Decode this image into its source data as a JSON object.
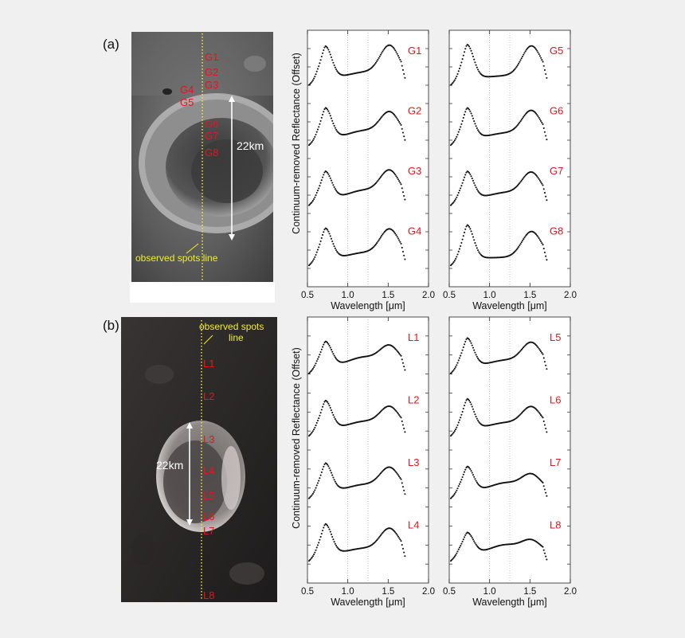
{
  "figure": {
    "panel_a_label": "(a)",
    "panel_b_label": "(b)",
    "scale_label_a": "22km",
    "scale_label_b": "22km",
    "observed_a": "observed spots line",
    "observed_b_line1": "observed spots",
    "observed_b_line2": "line",
    "ylabel": "Continuum-removed Reflectance (Offset)",
    "xlabel": "Wavelength [μm]",
    "label_color": "#e8141c",
    "dots_color": "#f2ef2a",
    "site_labels_a": [
      "G1",
      "G2",
      "G3",
      "G4",
      "G5",
      "G6",
      "G7",
      "G8"
    ],
    "site_labels_b": [
      "L1",
      "L2",
      "L3",
      "L4",
      "L5",
      "L6",
      "L7",
      "L8"
    ]
  },
  "chart_data": [
    {
      "type": "scatter",
      "panel": "a-left",
      "xlim": [
        0.5,
        2.0
      ],
      "xticks": [
        "0.5",
        "1.0",
        "1.5",
        "2.0"
      ],
      "xlabel": "Wavelength [μm]",
      "ylabel": "Continuum-removed Reflectance (Offset)",
      "series": [
        {
          "name": "G1",
          "shape": "g1"
        },
        {
          "name": "G2",
          "shape": "g2"
        },
        {
          "name": "G3",
          "shape": "g3"
        },
        {
          "name": "G4",
          "shape": "g4"
        }
      ]
    },
    {
      "type": "scatter",
      "panel": "a-right",
      "xlim": [
        0.5,
        2.0
      ],
      "xticks": [
        "0.5",
        "1.0",
        "1.5",
        "2.0"
      ],
      "xlabel": "Wavelength [μm]",
      "series": [
        {
          "name": "G5",
          "shape": "g5"
        },
        {
          "name": "G6",
          "shape": "g6"
        },
        {
          "name": "G7",
          "shape": "g7"
        },
        {
          "name": "G8",
          "shape": "g8"
        }
      ]
    },
    {
      "type": "scatter",
      "panel": "b-left",
      "xlim": [
        0.5,
        2.0
      ],
      "xticks": [
        "0.5",
        "1.0",
        "1.5",
        "2.0"
      ],
      "xlabel": "Wavelength [μm]",
      "ylabel": "Continuum-removed Reflectance (Offset)",
      "series": [
        {
          "name": "L1",
          "shape": "l1"
        },
        {
          "name": "L2",
          "shape": "l2"
        },
        {
          "name": "L3",
          "shape": "l3"
        },
        {
          "name": "L4",
          "shape": "l4"
        }
      ]
    },
    {
      "type": "scatter",
      "panel": "b-right",
      "xlim": [
        0.5,
        2.0
      ],
      "xticks": [
        "0.5",
        "1.0",
        "1.5",
        "2.0"
      ],
      "xlabel": "Wavelength [μm]",
      "series": [
        {
          "name": "L5",
          "shape": "l5"
        },
        {
          "name": "L6",
          "shape": "l6"
        },
        {
          "name": "L7",
          "shape": "l7"
        },
        {
          "name": "L8",
          "shape": "l8"
        }
      ]
    }
  ]
}
